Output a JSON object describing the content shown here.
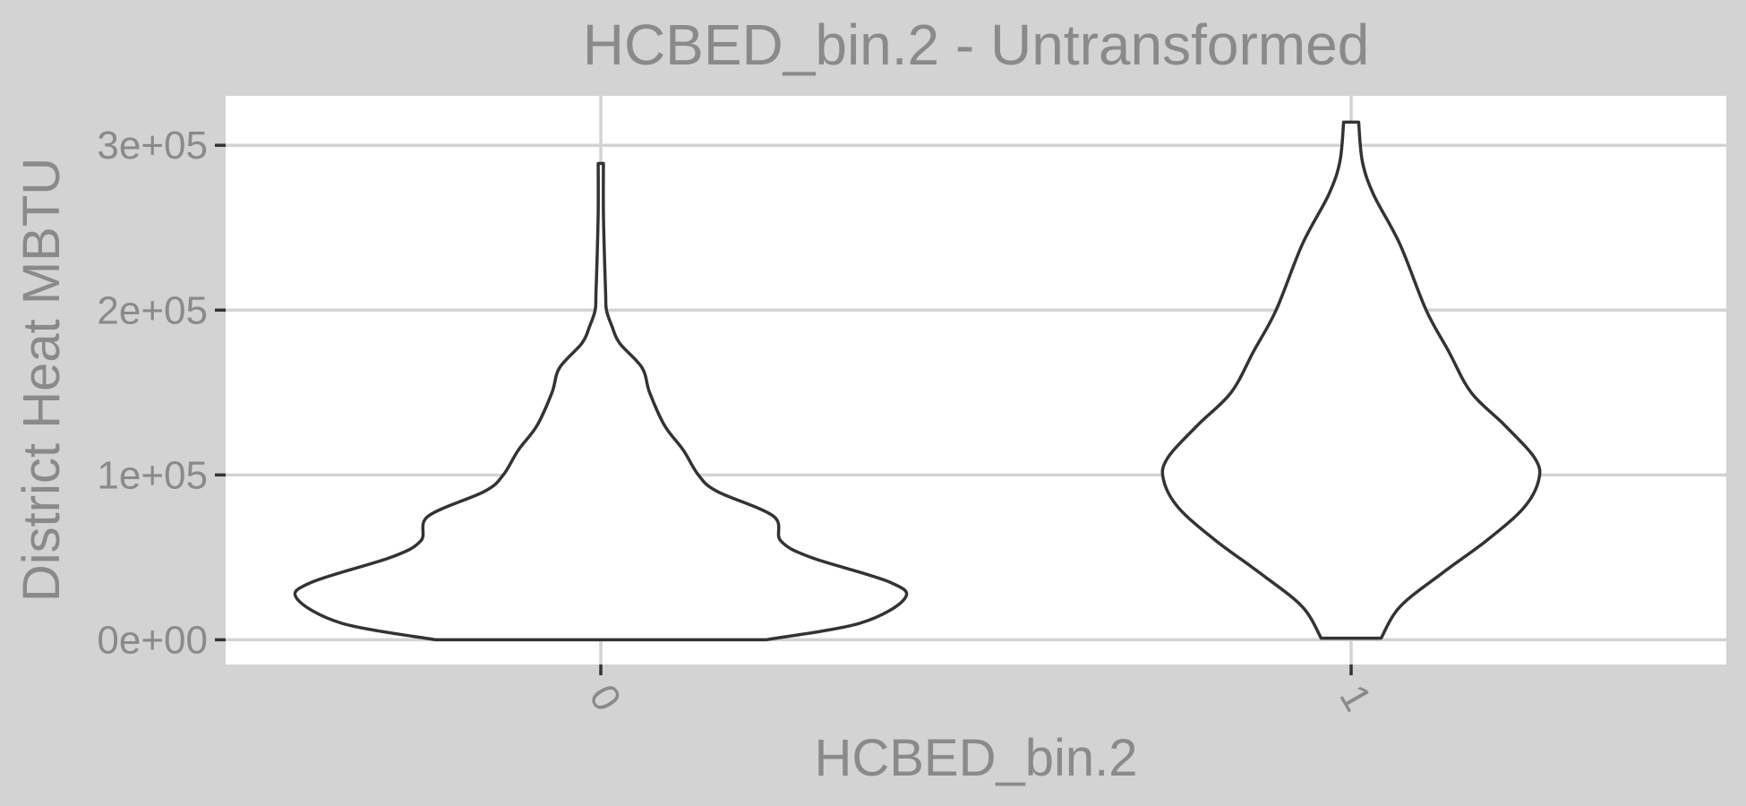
{
  "chart_data": {
    "type": "violin",
    "title": "HCBED_bin.2 - Untransformed",
    "xlabel": "HCBED_bin.2",
    "ylabel": "District Heat MBTU",
    "categories": [
      "0",
      "1"
    ],
    "ylim": [
      -15000,
      330000
    ],
    "yticks": [
      {
        "value": 0,
        "label": "0e+00"
      },
      {
        "value": 100000,
        "label": "1e+05"
      },
      {
        "value": 200000,
        "label": "2e+05"
      },
      {
        "value": 300000,
        "label": "3e+05"
      }
    ],
    "grid": true,
    "series": [
      {
        "category": "0",
        "min": 0,
        "max": 289000,
        "profile": [
          [
            0,
            0.44
          ],
          [
            10000,
            0.69
          ],
          [
            25000,
            0.81
          ],
          [
            35000,
            0.77
          ],
          [
            50000,
            0.56
          ],
          [
            60000,
            0.48
          ],
          [
            75000,
            0.46
          ],
          [
            90000,
            0.31
          ],
          [
            100000,
            0.26
          ],
          [
            115000,
            0.22
          ],
          [
            130000,
            0.17
          ],
          [
            150000,
            0.13
          ],
          [
            165000,
            0.11
          ],
          [
            180000,
            0.05
          ],
          [
            190000,
            0.03
          ],
          [
            200000,
            0.015
          ],
          [
            210000,
            0.013
          ],
          [
            230000,
            0.01
          ],
          [
            260000,
            0.007
          ],
          [
            289000,
            0.007
          ]
        ]
      },
      {
        "category": "1",
        "min": 1000,
        "max": 314000,
        "profile": [
          [
            1000,
            0.08
          ],
          [
            20000,
            0.13
          ],
          [
            40000,
            0.24
          ],
          [
            60000,
            0.36
          ],
          [
            80000,
            0.46
          ],
          [
            97000,
            0.5
          ],
          [
            110000,
            0.49
          ],
          [
            130000,
            0.41
          ],
          [
            150000,
            0.32
          ],
          [
            175000,
            0.26
          ],
          [
            200000,
            0.2
          ],
          [
            240000,
            0.13
          ],
          [
            270000,
            0.06
          ],
          [
            290000,
            0.03
          ],
          [
            314000,
            0.02
          ]
        ]
      }
    ]
  }
}
